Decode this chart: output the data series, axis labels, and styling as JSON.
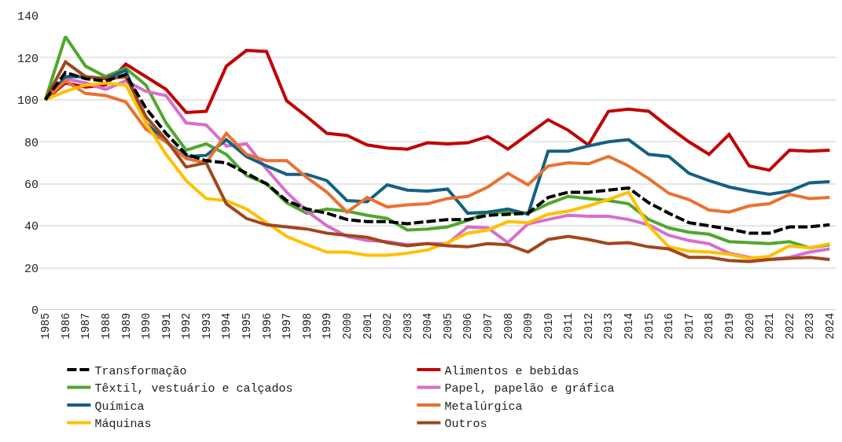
{
  "chart_data": {
    "type": "line",
    "categories": [
      "1985",
      "1986",
      "1987",
      "1988",
      "1989",
      "1990",
      "1991",
      "1992",
      "1993",
      "1994",
      "1995",
      "1996",
      "1997",
      "1998",
      "1999",
      "2000",
      "2001",
      "2002",
      "2003",
      "2004",
      "2005",
      "2006",
      "2007",
      "2008",
      "2009",
      "2010",
      "2011",
      "2012",
      "2013",
      "2014",
      "2015",
      "2016",
      "2017",
      "2018",
      "2019",
      "2020",
      "2021",
      "2022",
      "2023",
      "2024"
    ],
    "ylim": [
      0,
      140
    ],
    "yticks": [
      0,
      20,
      40,
      60,
      80,
      100,
      120,
      140
    ],
    "grid": "y",
    "legend": "bottom",
    "series": [
      {
        "name": "Transformação",
        "color": "#000000",
        "line_style": "dashed",
        "values": [
          100,
          113,
          110,
          109,
          112,
          96,
          84,
          74,
          71,
          70,
          65,
          60,
          52,
          48,
          46,
          43,
          42,
          42,
          41,
          42,
          43,
          43,
          45,
          45.5,
          46,
          53.5,
          56,
          56,
          57,
          58,
          51,
          46,
          41.5,
          40,
          38.5,
          36.5,
          36.5,
          39.5,
          39.5,
          40.5
        ]
      },
      {
        "name": "Alimentos e bebidas",
        "color": "#c00000",
        "values": [
          100,
          108,
          106,
          107,
          117,
          111,
          105,
          94,
          94.5,
          116,
          123.5,
          123,
          99.5,
          92,
          84,
          83,
          78.5,
          77,
          76.5,
          79.5,
          79,
          79.5,
          82.5,
          76.5,
          83.5,
          90.5,
          85.5,
          78.5,
          94.5,
          95.5,
          94.5,
          87,
          80,
          74,
          83.5,
          68.5,
          66.5,
          76,
          75.5,
          76
        ]
      },
      {
        "name": "Têxtil, vestuário e calçados",
        "color": "#4ea72e",
        "values": [
          100,
          130,
          116,
          111,
          115,
          107,
          89,
          76,
          79,
          74,
          64,
          60,
          51,
          46,
          48,
          47,
          45,
          43.5,
          38,
          38.5,
          39.5,
          42.5,
          46.5,
          46.5,
          46,
          50.5,
          54,
          53,
          52,
          50.5,
          43,
          39,
          37,
          36,
          32.5,
          32,
          31.5,
          32.5,
          29.5,
          31
        ]
      },
      {
        "name": "Papel, papelão e gráfica",
        "color": "#d86ecc",
        "values": [
          100,
          110,
          108,
          105,
          109,
          104,
          102,
          89,
          88,
          78,
          79,
          67,
          56,
          47,
          40,
          35,
          33,
          32.5,
          31,
          31.5,
          31.5,
          39.5,
          39,
          32,
          41,
          43,
          45,
          44.5,
          44.5,
          43,
          40.5,
          35.5,
          33,
          31.5,
          27,
          25,
          24,
          25,
          27.5,
          29
        ]
      },
      {
        "name": "Química",
        "color": "#156082",
        "values": [
          100,
          111,
          111,
          110,
          114,
          89,
          80,
          73,
          73.5,
          81,
          73,
          68.5,
          64.5,
          64.5,
          61.5,
          52,
          51.5,
          59.5,
          57,
          56.5,
          57.5,
          46,
          46.5,
          48,
          45.5,
          75.5,
          75.5,
          78,
          80,
          81,
          74,
          73,
          65,
          61.5,
          58.5,
          56.5,
          55,
          56.5,
          60.5,
          61
        ]
      },
      {
        "name": "Metalúrgica",
        "color": "#e97132",
        "values": [
          100,
          109,
          103,
          102,
          99,
          86,
          80,
          72,
          70,
          84,
          74,
          71,
          71,
          63,
          56,
          46.5,
          53.5,
          49,
          50,
          50.5,
          53,
          54,
          58.5,
          65,
          59.5,
          68.5,
          70,
          69.5,
          73,
          68.5,
          62.5,
          55.5,
          52.5,
          47.5,
          46.5,
          49.5,
          50.5,
          55,
          53,
          53.5
        ]
      },
      {
        "name": "Máquinas",
        "color": "#ffc000",
        "values": [
          100,
          104,
          107,
          108,
          107,
          89,
          74,
          61.5,
          53,
          52,
          48,
          41.5,
          35,
          31,
          27.5,
          27.5,
          26,
          26,
          27,
          28.5,
          32,
          36.5,
          38,
          42,
          41.5,
          45.5,
          47,
          49.5,
          52.5,
          56,
          40,
          30,
          28,
          27.5,
          26.5,
          24.5,
          25.5,
          30.5,
          29.5,
          31.5
        ]
      },
      {
        "name": "Outros",
        "color": "#a0471c",
        "values": [
          100,
          118,
          111,
          110,
          111,
          92,
          81,
          68,
          70,
          50.5,
          43.5,
          40.5,
          39.5,
          38.5,
          36.5,
          35.5,
          34.5,
          32,
          30.5,
          31.5,
          30.5,
          30,
          31.5,
          31,
          27.5,
          33.5,
          35,
          33.5,
          31.5,
          32,
          30,
          29,
          25,
          25,
          23.5,
          23,
          24,
          24.5,
          25,
          24
        ]
      }
    ]
  }
}
